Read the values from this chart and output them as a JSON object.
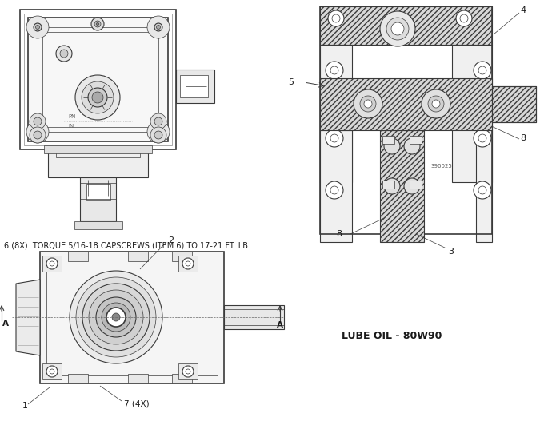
{
  "bg_color": "#ffffff",
  "lc": "#3a3a3a",
  "note1": "6 (8X)  TORQUE 5/16-18 CAPSCREWS (ITEM 6) TO 17-21 FT. LB.",
  "note2": "LUBE OIL - 80W90",
  "label_4": "4",
  "label_5": "5",
  "label_8a": "8",
  "label_8b": "8",
  "label_3": "3",
  "label_2": "2",
  "label_1": "1",
  "label_7": "7 (4X)",
  "label_A": "A",
  "label_390025": "390025"
}
